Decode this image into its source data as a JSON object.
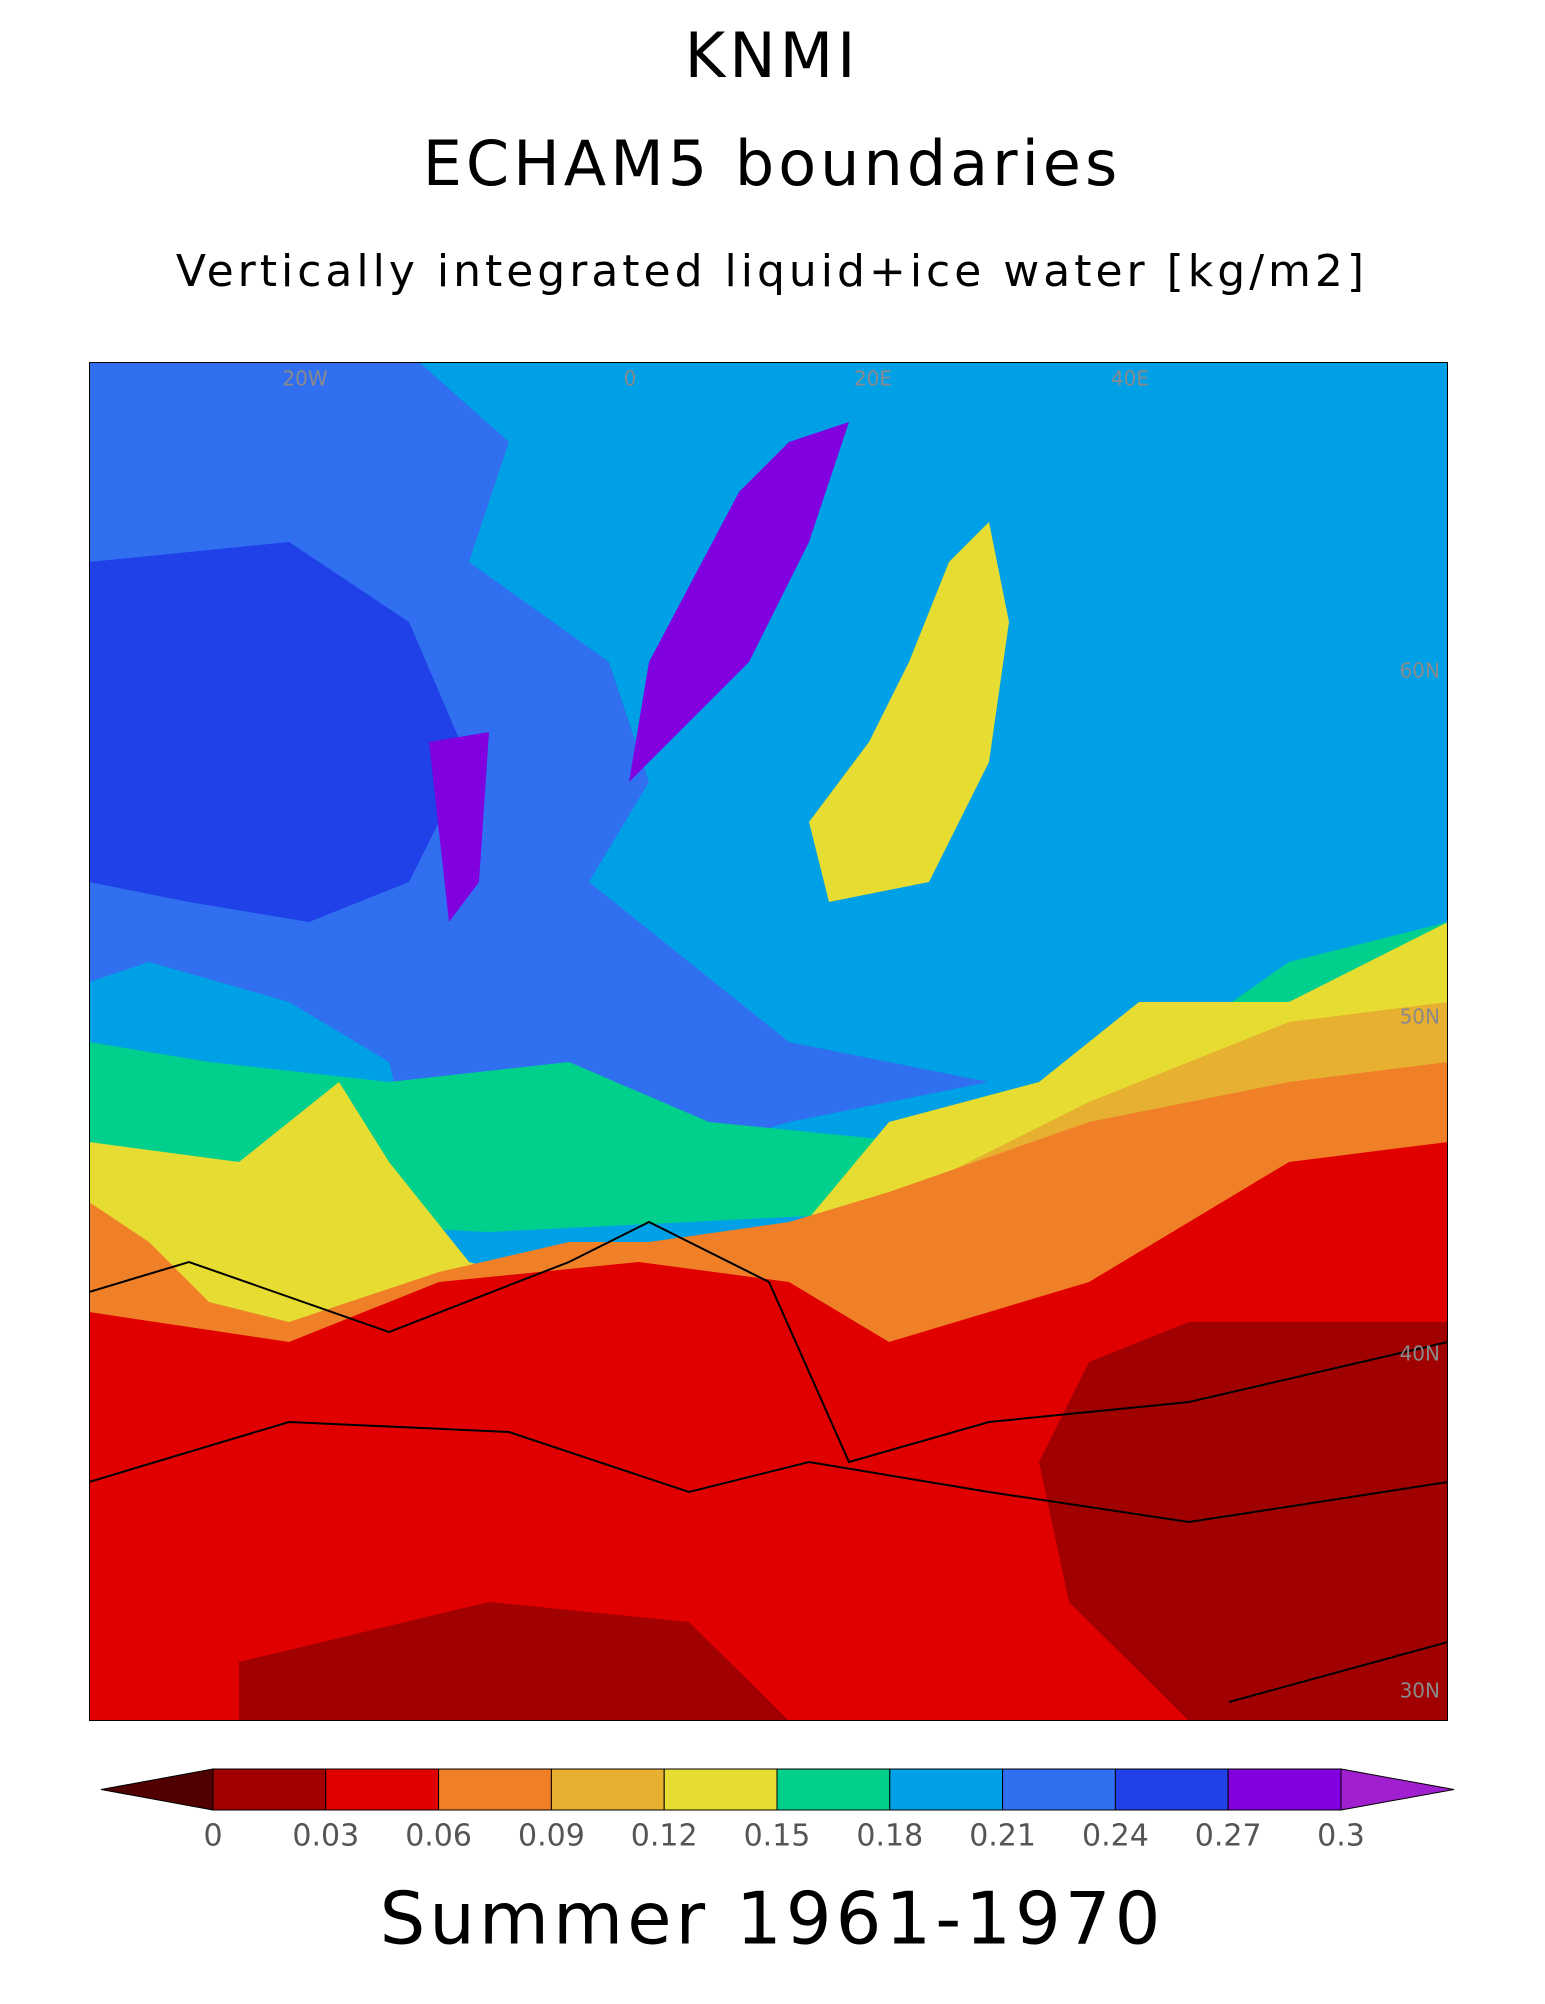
{
  "header": {
    "title": "KNMI",
    "subtitle": "ECHAM5 boundaries",
    "variable": "Vertically integrated liquid+ice water [kg/m2]"
  },
  "map": {
    "longitude_labels": [
      "20W",
      "0",
      "20E",
      "40E"
    ],
    "latitude_labels": [
      "60N",
      "50N",
      "40N",
      "30N"
    ]
  },
  "colorbar": {
    "ticks": [
      0,
      0.03,
      0.06,
      0.09,
      0.12,
      0.15,
      0.18,
      0.21,
      0.24,
      0.27,
      0.3
    ],
    "colors": [
      "#a00000",
      "#e00000",
      "#f08028",
      "#e8b030",
      "#e6dc32",
      "#00d08c",
      "#00a0e6",
      "#3070f0",
      "#2040e8",
      "#8000e0"
    ],
    "under_color": "#500000",
    "over_color": "#a020d0"
  },
  "footer": "Summer 1961-1970"
}
